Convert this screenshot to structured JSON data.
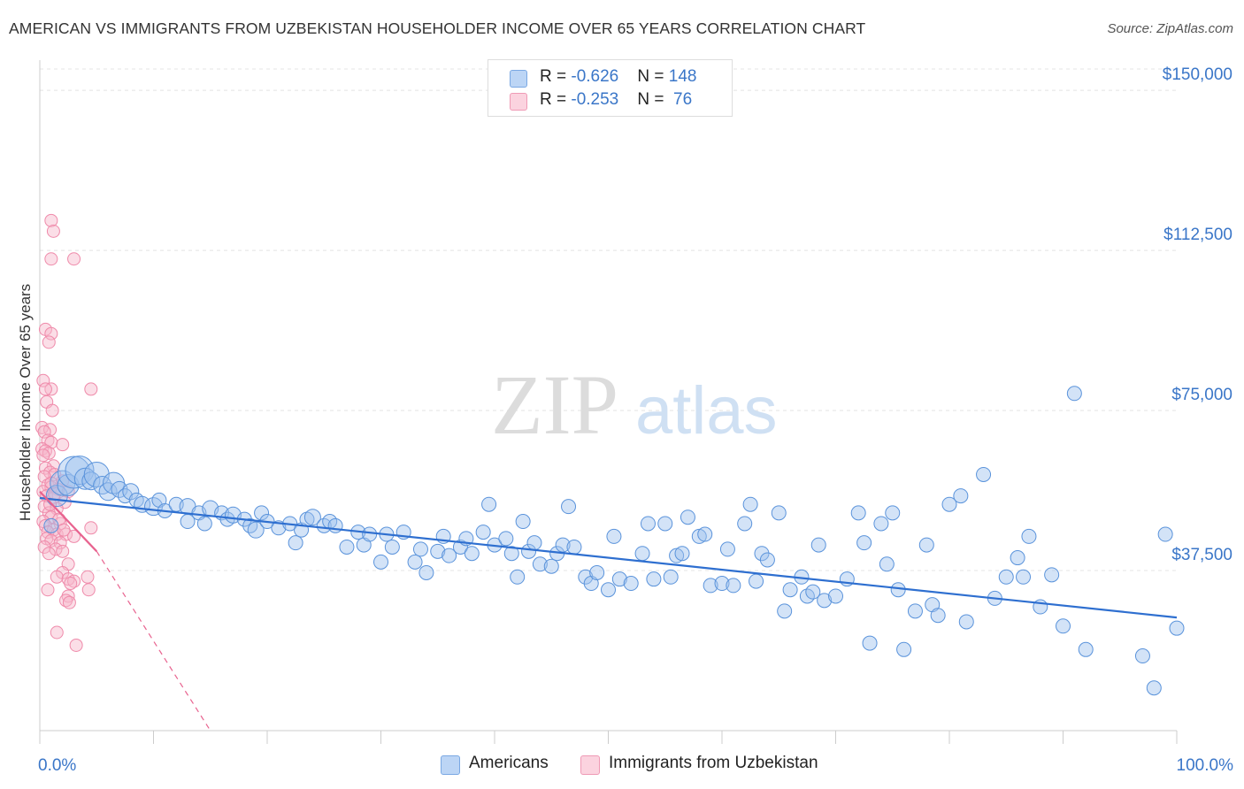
{
  "header": {
    "title": "AMERICAN VS IMMIGRANTS FROM UZBEKISTAN HOUSEHOLDER INCOME OVER 65 YEARS CORRELATION CHART",
    "source": "Source: ZipAtlas.com"
  },
  "watermark": {
    "part1": "ZIP",
    "part2": "atlas"
  },
  "legend": {
    "rows": [
      {
        "r_label": "R = ",
        "r_value": "-0.626",
        "n_label": "N = ",
        "n_value": "148",
        "color": "#9ec1ee"
      },
      {
        "r_label": "R = ",
        "r_value": "-0.253",
        "n_label": "N = ",
        "n_value": " 76",
        "color": "#f7b6c9"
      }
    ]
  },
  "bottom_legend": [
    {
      "label": "Americans",
      "color": "#9ec1ee"
    },
    {
      "label": "Immigrants from Uzbekistan",
      "color": "#f7b6c9"
    }
  ],
  "chart_data": {
    "type": "scatter",
    "ylabel": "Householder Income Over 65 years",
    "x_range": [
      0,
      100
    ],
    "y_range": [
      0,
      155000
    ],
    "x_tick_labels": [
      "0.0%",
      "100.0%"
    ],
    "y_ticks": [
      37500,
      75000,
      112500,
      150000
    ],
    "y_tick_labels": [
      "$37,500",
      "$75,000",
      "$112,500",
      "$150,000"
    ],
    "grid": true,
    "legend_position": "top-center",
    "colors": {
      "americans": "#4a86d8",
      "americans_line": "#2e6fd0",
      "uzbekistan": "#ef7aa0",
      "uzbekistan_line": "#e8638f"
    },
    "series": [
      {
        "name": "Americans",
        "trend": {
          "x": [
            0,
            100
          ],
          "y": [
            54500,
            26500
          ]
        },
        "points": [
          [
            1.0,
            48000,
            8
          ],
          [
            1.5,
            55000,
            12
          ],
          [
            2.0,
            58000,
            14
          ],
          [
            2.5,
            57500,
            12
          ],
          [
            3.0,
            60500,
            18
          ],
          [
            3.5,
            61000,
            16
          ],
          [
            4.0,
            59000,
            12
          ],
          [
            4.5,
            58500,
            10
          ],
          [
            5.0,
            60000,
            14
          ],
          [
            5.5,
            57500,
            10
          ],
          [
            6.0,
            56000,
            10
          ],
          [
            6.5,
            58000,
            12
          ],
          [
            7.0,
            56500,
            9
          ],
          [
            7.5,
            55000,
            8
          ],
          [
            8.0,
            56000,
            9
          ],
          [
            8.5,
            54000,
            8
          ],
          [
            9.0,
            53000,
            9
          ],
          [
            10.0,
            52500,
            10
          ],
          [
            10.5,
            54000,
            8
          ],
          [
            11.0,
            51500,
            8
          ],
          [
            12.0,
            53000,
            8
          ],
          [
            13.0,
            52500,
            9
          ],
          [
            13.0,
            49000,
            8
          ],
          [
            14.0,
            51000,
            8
          ],
          [
            14.5,
            48500,
            8
          ],
          [
            15.0,
            52000,
            9
          ],
          [
            16.0,
            51000,
            8
          ],
          [
            16.5,
            49500,
            8
          ],
          [
            17.0,
            50500,
            9
          ],
          [
            18.0,
            49500,
            8
          ],
          [
            18.5,
            48000,
            8
          ],
          [
            19.0,
            47000,
            9
          ],
          [
            19.5,
            51000,
            8
          ],
          [
            20.0,
            49000,
            8
          ],
          [
            21.0,
            47500,
            8
          ],
          [
            22.0,
            48500,
            8
          ],
          [
            22.5,
            44000,
            8
          ],
          [
            23.0,
            47000,
            8
          ],
          [
            23.5,
            49500,
            8
          ],
          [
            24.0,
            50000,
            9
          ],
          [
            25.0,
            48000,
            8
          ],
          [
            25.5,
            49000,
            8
          ],
          [
            26.0,
            48000,
            8
          ],
          [
            27.0,
            43000,
            8
          ],
          [
            28.0,
            46500,
            8
          ],
          [
            28.5,
            43500,
            8
          ],
          [
            29.0,
            46000,
            8
          ],
          [
            30.0,
            39500,
            8
          ],
          [
            30.5,
            46000,
            8
          ],
          [
            31.0,
            43000,
            8
          ],
          [
            32.0,
            46500,
            8
          ],
          [
            33.0,
            39500,
            8
          ],
          [
            33.5,
            42500,
            8
          ],
          [
            34.0,
            37000,
            8
          ],
          [
            35.0,
            42000,
            8
          ],
          [
            35.5,
            45500,
            8
          ],
          [
            36.0,
            41000,
            8
          ],
          [
            37.0,
            43000,
            8
          ],
          [
            37.5,
            45000,
            8
          ],
          [
            38.0,
            41500,
            8
          ],
          [
            39.0,
            46500,
            8
          ],
          [
            39.5,
            53000,
            8
          ],
          [
            40.0,
            43500,
            8
          ],
          [
            41.0,
            45000,
            8
          ],
          [
            41.5,
            41500,
            8
          ],
          [
            42.0,
            36000,
            8
          ],
          [
            42.5,
            49000,
            8
          ],
          [
            43.0,
            42000,
            8
          ],
          [
            43.5,
            44000,
            8
          ],
          [
            44.0,
            39000,
            8
          ],
          [
            45.0,
            38500,
            8
          ],
          [
            45.5,
            41500,
            8
          ],
          [
            46.0,
            43500,
            8
          ],
          [
            46.5,
            52500,
            8
          ],
          [
            47.0,
            43000,
            8
          ],
          [
            48.0,
            36000,
            8
          ],
          [
            48.5,
            34500,
            8
          ],
          [
            49.0,
            37000,
            8
          ],
          [
            50.0,
            33000,
            8
          ],
          [
            50.5,
            45500,
            8
          ],
          [
            51.0,
            35500,
            8
          ],
          [
            52.0,
            34500,
            8
          ],
          [
            53.0,
            41500,
            8
          ],
          [
            53.5,
            48500,
            8
          ],
          [
            54.0,
            35500,
            8
          ],
          [
            55.0,
            48500,
            8
          ],
          [
            55.5,
            36000,
            8
          ],
          [
            56.0,
            41000,
            8
          ],
          [
            56.5,
            41500,
            8
          ],
          [
            57.0,
            50000,
            8
          ],
          [
            58.0,
            45500,
            8
          ],
          [
            58.5,
            46000,
            8
          ],
          [
            59.0,
            34000,
            8
          ],
          [
            60.0,
            34500,
            8
          ],
          [
            60.5,
            42500,
            8
          ],
          [
            61.0,
            34000,
            8
          ],
          [
            62.0,
            48500,
            8
          ],
          [
            62.5,
            53000,
            8
          ],
          [
            63.0,
            35000,
            8
          ],
          [
            63.5,
            41500,
            8
          ],
          [
            64.0,
            40000,
            8
          ],
          [
            65.0,
            51000,
            8
          ],
          [
            65.5,
            28000,
            8
          ],
          [
            66.0,
            33000,
            8
          ],
          [
            67.0,
            36000,
            8
          ],
          [
            67.5,
            31500,
            8
          ],
          [
            68.0,
            32500,
            8
          ],
          [
            68.5,
            43500,
            8
          ],
          [
            69.0,
            30500,
            8
          ],
          [
            70.0,
            31500,
            8
          ],
          [
            71.0,
            35500,
            8
          ],
          [
            72.0,
            51000,
            8
          ],
          [
            72.5,
            44000,
            8
          ],
          [
            73.0,
            20500,
            8
          ],
          [
            74.0,
            48500,
            8
          ],
          [
            74.5,
            39000,
            8
          ],
          [
            75.0,
            51000,
            8
          ],
          [
            75.5,
            33000,
            8
          ],
          [
            76.0,
            19000,
            8
          ],
          [
            77.0,
            28000,
            8
          ],
          [
            78.0,
            43500,
            8
          ],
          [
            78.5,
            29500,
            8
          ],
          [
            79.0,
            27000,
            8
          ],
          [
            80.0,
            53000,
            8
          ],
          [
            81.0,
            55000,
            8
          ],
          [
            81.5,
            25500,
            8
          ],
          [
            83.0,
            60000,
            8
          ],
          [
            84.0,
            31000,
            8
          ],
          [
            85.0,
            36000,
            8
          ],
          [
            86.0,
            40500,
            8
          ],
          [
            86.5,
            36000,
            8
          ],
          [
            87.0,
            45500,
            8
          ],
          [
            88.0,
            29000,
            8
          ],
          [
            89.0,
            36500,
            8
          ],
          [
            90.0,
            24500,
            8
          ],
          [
            91.0,
            79000,
            8
          ],
          [
            92.0,
            19000,
            8
          ],
          [
            97.0,
            17500,
            8
          ],
          [
            98.0,
            10000,
            8
          ],
          [
            99.0,
            46000,
            8
          ],
          [
            100.0,
            24000,
            8
          ]
        ]
      },
      {
        "name": "Immigrants from Uzbekistan",
        "trend": {
          "x": [
            0,
            5
          ],
          "y": [
            56000,
            42000
          ]
        },
        "trend_extension": {
          "x": [
            5,
            15
          ],
          "y": [
            42000,
            0
          ]
        },
        "points": [
          [
            1.0,
            119500,
            7
          ],
          [
            1.2,
            117000,
            7
          ],
          [
            1.0,
            110500,
            7
          ],
          [
            3.0,
            110500,
            7
          ],
          [
            0.5,
            94000,
            7
          ],
          [
            1.0,
            93000,
            7
          ],
          [
            0.8,
            91000,
            7
          ],
          [
            0.3,
            82000,
            7
          ],
          [
            1.0,
            80000,
            7
          ],
          [
            0.5,
            80000,
            7
          ],
          [
            4.5,
            80000,
            7
          ],
          [
            0.6,
            77000,
            7
          ],
          [
            1.1,
            75000,
            7
          ],
          [
            0.2,
            71000,
            7
          ],
          [
            0.9,
            70500,
            7
          ],
          [
            0.4,
            70000,
            7
          ],
          [
            0.7,
            68000,
            7
          ],
          [
            1.0,
            67500,
            7
          ],
          [
            2.0,
            67000,
            7
          ],
          [
            0.2,
            66000,
            7
          ],
          [
            0.5,
            65500,
            7
          ],
          [
            0.8,
            65000,
            7
          ],
          [
            0.3,
            64500,
            7
          ],
          [
            1.2,
            62000,
            7
          ],
          [
            0.5,
            61500,
            7
          ],
          [
            0.9,
            60500,
            7
          ],
          [
            1.3,
            60000,
            7
          ],
          [
            0.4,
            59500,
            7
          ],
          [
            2.0,
            58500,
            7
          ],
          [
            0.7,
            57500,
            7
          ],
          [
            1.0,
            57000,
            7
          ],
          [
            1.6,
            56500,
            7
          ],
          [
            0.3,
            56000,
            7
          ],
          [
            2.5,
            56000,
            7
          ],
          [
            0.6,
            55000,
            7
          ],
          [
            1.2,
            54500,
            7
          ],
          [
            2.2,
            53500,
            7
          ],
          [
            0.4,
            52500,
            7
          ],
          [
            1.5,
            52000,
            7
          ],
          [
            0.8,
            51000,
            7
          ],
          [
            1.0,
            50000,
            7
          ],
          [
            0.3,
            49000,
            7
          ],
          [
            1.8,
            48500,
            7
          ],
          [
            0.5,
            48000,
            7
          ],
          [
            1.2,
            47000,
            7
          ],
          [
            0.7,
            46500,
            7
          ],
          [
            4.5,
            47500,
            7
          ],
          [
            1.5,
            46000,
            7
          ],
          [
            2.3,
            46000,
            7
          ],
          [
            0.6,
            45000,
            7
          ],
          [
            1.0,
            44500,
            7
          ],
          [
            1.8,
            44000,
            7
          ],
          [
            0.4,
            43000,
            7
          ],
          [
            1.4,
            42500,
            7
          ],
          [
            2.0,
            42000,
            7
          ],
          [
            3.0,
            45500,
            7
          ],
          [
            0.8,
            41500,
            7
          ],
          [
            2.5,
            39000,
            7
          ],
          [
            2.0,
            37000,
            7
          ],
          [
            1.5,
            36000,
            7
          ],
          [
            4.2,
            36000,
            7
          ],
          [
            2.5,
            35500,
            7
          ],
          [
            3.0,
            35000,
            7
          ],
          [
            2.7,
            34500,
            7
          ],
          [
            0.7,
            33000,
            7
          ],
          [
            4.3,
            33000,
            7
          ],
          [
            2.5,
            31500,
            7
          ],
          [
            2.3,
            30500,
            7
          ],
          [
            2.6,
            30000,
            7
          ],
          [
            1.5,
            23000,
            7
          ],
          [
            3.2,
            20000,
            7
          ],
          [
            1.0,
            58000,
            7
          ],
          [
            1.3,
            55500,
            7
          ],
          [
            0.9,
            53000,
            7
          ],
          [
            1.7,
            49500,
            7
          ],
          [
            2.1,
            47000,
            7
          ]
        ]
      }
    ]
  }
}
